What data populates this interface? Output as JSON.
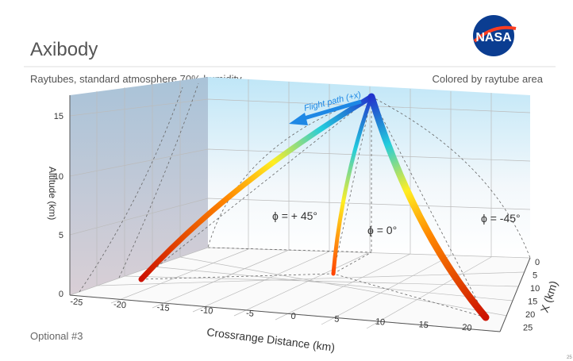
{
  "header": {
    "title": "Axibody",
    "logo": "NASA"
  },
  "subtitle_left": "Raytubes, standard atmosphere 70% humidity",
  "subtitle_right": "Colored by raytube area",
  "plot": {
    "altitude_label": "Altitude (km)",
    "altitude_ticks": [
      "0",
      "5",
      "10",
      "15"
    ],
    "crossrange_label": "Crossrange Distance (km)",
    "crossrange_ticks": [
      "-25",
      "-20",
      "-15",
      "-10",
      "-5",
      "0",
      "5",
      "10",
      "15",
      "20"
    ],
    "x_label": "X (km)",
    "x_ticks": [
      "0",
      "5",
      "10",
      "15",
      "20",
      "25"
    ],
    "flight_path": "Flight path (+x)",
    "annotations": [
      "ϕ = + 45°",
      "ϕ = 0°",
      "ϕ = -45°"
    ]
  },
  "footer": "Optional #3",
  "page_number": "25"
}
